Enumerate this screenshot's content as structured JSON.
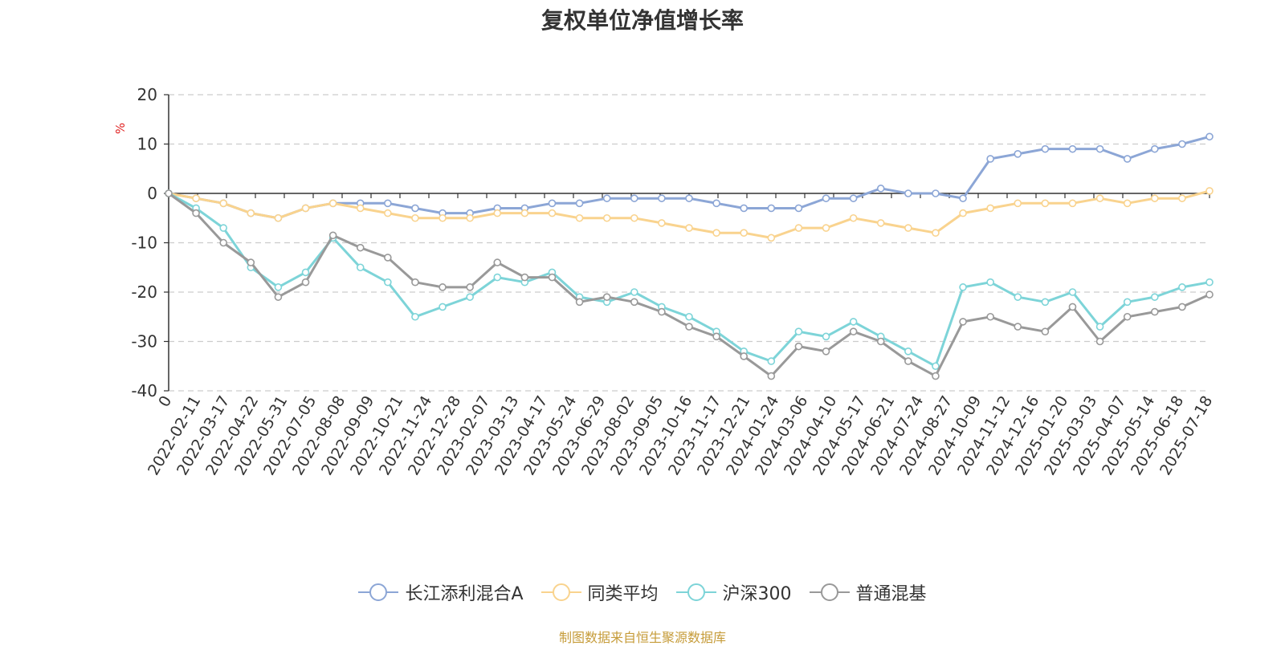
{
  "chart_data": {
    "type": "line",
    "title": "复权单位净值增长率",
    "ylabel": "%",
    "ylim": [
      -40,
      20
    ],
    "yticks": [
      20,
      10,
      0,
      -10,
      -20,
      -30,
      -40
    ],
    "x_tick_labels": [
      "0",
      "2022-02-11",
      "2022-03-17",
      "2022-04-22",
      "2022-05-31",
      "2022-07-05",
      "2022-08-08",
      "2022-09-09",
      "2022-10-21",
      "2022-11-24",
      "2022-12-28",
      "2023-02-07",
      "2023-03-13",
      "2023-04-17",
      "2023-05-24",
      "2023-06-29",
      "2023-08-02",
      "2023-09-05",
      "2023-10-16",
      "2023-11-17",
      "2023-12-21",
      "2024-01-24",
      "2024-03-06",
      "2024-04-10",
      "2024-05-17",
      "2024-06-21",
      "2024-07-24",
      "2024-08-27",
      "2024-10-09",
      "2024-11-12",
      "2024-12-16",
      "2025-01-20",
      "2025-03-03",
      "2025-04-07",
      "2025-05-14",
      "2025-06-18",
      "2025-07-18"
    ],
    "grid": "horizontal-dashed",
    "legend_position": "bottom",
    "series": [
      {
        "name": "长江添利混合A",
        "color": "#8ca6d6",
        "values": [
          0,
          -1,
          -2,
          -4,
          -5,
          -3,
          -2,
          -2,
          -2,
          -3,
          -4,
          -4,
          -3,
          -3,
          -2,
          -2,
          -1,
          -1,
          -1,
          -1,
          -2,
          -3,
          -3,
          -3,
          -1,
          -1,
          1,
          0,
          0,
          -1,
          7,
          8,
          9,
          9,
          9,
          7,
          9,
          10,
          11.5
        ]
      },
      {
        "name": "同类平均",
        "color": "#f9d38e",
        "values": [
          0,
          -1,
          -2,
          -4,
          -5,
          -3,
          -2,
          -3,
          -4,
          -5,
          -5,
          -5,
          -4,
          -4,
          -4,
          -5,
          -5,
          -5,
          -6,
          -7,
          -8,
          -8,
          -9,
          -7,
          -7,
          -5,
          -6,
          -7,
          -8,
          -4,
          -3,
          -2,
          -2,
          -2,
          -1,
          -2,
          -1,
          -1,
          0.5
        ]
      },
      {
        "name": "沪深300",
        "color": "#7dd4d8",
        "values": [
          0,
          -3,
          -7,
          -15,
          -19,
          -16,
          -9,
          -15,
          -18,
          -25,
          -23,
          -21,
          -17,
          -18,
          -16,
          -21,
          -22,
          -20,
          -23,
          -25,
          -28,
          -32,
          -34,
          -28,
          -29,
          -26,
          -29,
          -32,
          -35,
          -19,
          -18,
          -21,
          -22,
          -20,
          -27,
          -22,
          -21,
          -19,
          -18
        ]
      },
      {
        "name": "普通混基",
        "color": "#999999",
        "values": [
          0,
          -4,
          -10,
          -14,
          -21,
          -18,
          -8.5,
          -11,
          -13,
          -18,
          -19,
          -19,
          -14,
          -17,
          -17,
          -22,
          -21,
          -22,
          -24,
          -27,
          -29,
          -33,
          -37,
          -31,
          -32,
          -28,
          -30,
          -34,
          -37,
          -26,
          -25,
          -27,
          -28,
          -23,
          -30,
          -25,
          -24,
          -23,
          -20.5
        ]
      }
    ]
  },
  "source_note": "制图数据来自恒生聚源数据库"
}
